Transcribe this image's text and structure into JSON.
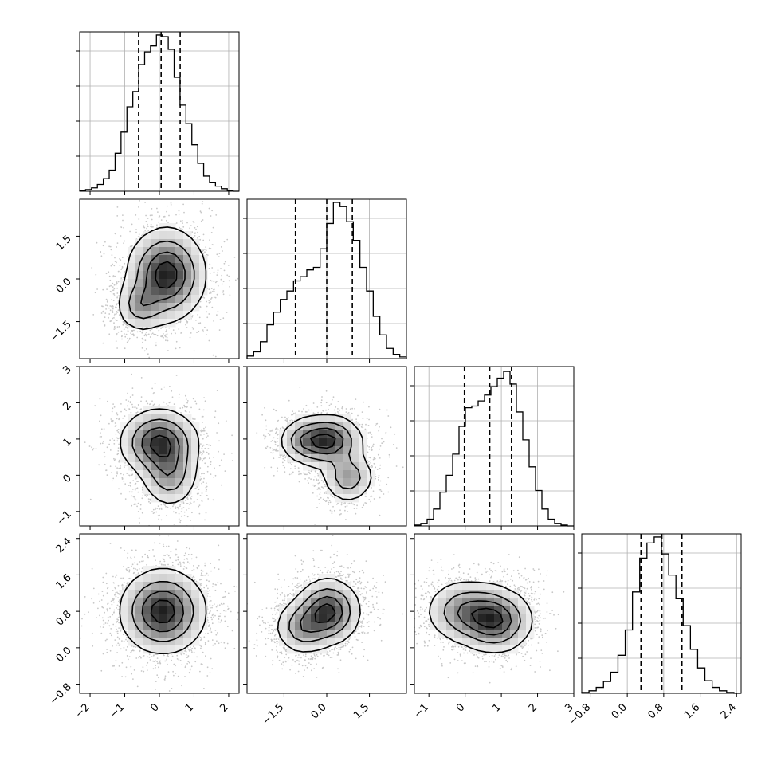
{
  "chart_data": {
    "type": "corner",
    "parameters": [
      {
        "range": [
          -2.3,
          2.3
        ],
        "ticks": [
          -2,
          -1,
          0,
          1,
          2
        ],
        "tick_labels": [
          "−2",
          "−1",
          "0",
          "1",
          "2"
        ],
        "quantiles": [
          -0.6,
          0.05,
          0.6
        ],
        "hist_max": 185,
        "histogram": [
          1,
          2,
          4,
          8,
          15,
          25,
          45,
          70,
          100,
          118,
          150,
          165,
          172,
          185,
          183,
          168,
          135,
          102,
          80,
          55,
          33,
          18,
          10,
          6,
          3,
          1,
          0
        ]
      },
      {
        "range": [
          -2.8,
          2.8
        ],
        "ticks": [
          -1.5,
          0.0,
          1.5
        ],
        "tick_labels": [
          "−1.5",
          "0.0",
          "1.5"
        ],
        "quantiles": [
          -1.1,
          0.0,
          0.9
        ],
        "hist_max": 185,
        "histogram": [
          3,
          8,
          20,
          40,
          55,
          70,
          80,
          92,
          97,
          105,
          108,
          130,
          160,
          185,
          180,
          162,
          140,
          108,
          80,
          50,
          28,
          12,
          5,
          2
        ]
      },
      {
        "range": [
          -1.4,
          3.0
        ],
        "ticks": [
          -1,
          0,
          1,
          2,
          3
        ],
        "tick_labels": [
          "−1",
          "0",
          "1",
          "2",
          "3"
        ],
        "quantiles": [
          -0.02,
          0.68,
          1.28
        ],
        "hist_max": 185,
        "histogram": [
          1,
          3,
          8,
          20,
          40,
          60,
          85,
          118,
          140,
          142,
          148,
          155,
          165,
          175,
          183,
          168,
          135,
          102,
          70,
          42,
          20,
          8,
          3,
          1,
          0
        ]
      },
      {
        "range": [
          -1.0,
          2.5
        ],
        "ticks": [
          -0.8,
          0.0,
          0.8,
          1.6,
          2.4
        ],
        "tick_labels": [
          "−0.8",
          "0.0",
          "0.8",
          "1.6",
          "2.4"
        ],
        "quantiles": [
          0.3,
          0.76,
          1.2
        ],
        "hist_max": 185,
        "histogram": [
          1,
          3,
          7,
          14,
          25,
          45,
          75,
          120,
          160,
          178,
          185,
          165,
          140,
          112,
          80,
          52,
          30,
          15,
          7,
          3,
          1,
          0
        ]
      }
    ],
    "pairs": [
      {
        "x": 0,
        "y": 1,
        "blobs": [
          {
            "cx": 0.2,
            "cy": 0.15,
            "sx": 0.55,
            "sy": 0.8,
            "w": 1.0
          },
          {
            "cx": -0.55,
            "cy": -0.95,
            "sx": 0.35,
            "sy": 0.45,
            "w": 0.45
          }
        ]
      },
      {
        "x": 0,
        "y": 2,
        "blobs": [
          {
            "cx": 0.0,
            "cy": 0.9,
            "sx": 0.55,
            "sy": 0.45,
            "w": 1.0
          },
          {
            "cx": 0.3,
            "cy": 0.0,
            "sx": 0.4,
            "sy": 0.45,
            "w": 0.55
          }
        ]
      },
      {
        "x": 1,
        "y": 2,
        "blobs": [
          {
            "cx": 0.0,
            "cy": 0.95,
            "sx": 0.6,
            "sy": 0.35,
            "w": 1.0
          },
          {
            "cx": 0.75,
            "cy": -0.05,
            "sx": 0.45,
            "sy": 0.35,
            "w": 0.55
          },
          {
            "cx": -0.9,
            "cy": 0.95,
            "sx": 0.4,
            "sy": 0.3,
            "w": 0.35
          }
        ]
      },
      {
        "x": 0,
        "y": 3,
        "blobs": [
          {
            "cx": 0.1,
            "cy": 0.8,
            "sx": 0.6,
            "sy": 0.45,
            "w": 1.0
          }
        ]
      },
      {
        "x": 1,
        "y": 3,
        "blobs": [
          {
            "cx": 0.05,
            "cy": 0.8,
            "sx": 0.55,
            "sy": 0.35,
            "w": 1.0
          },
          {
            "cx": -0.85,
            "cy": 0.45,
            "sx": 0.5,
            "sy": 0.3,
            "w": 0.55
          }
        ]
      },
      {
        "x": 2,
        "y": 3,
        "blobs": [
          {
            "cx": 0.85,
            "cy": 0.6,
            "sx": 0.5,
            "sy": 0.35,
            "w": 1.0
          },
          {
            "cx": 0.0,
            "cy": 0.8,
            "sx": 0.55,
            "sy": 0.35,
            "w": 0.7
          }
        ]
      }
    ],
    "grid": true,
    "legend": "none"
  }
}
